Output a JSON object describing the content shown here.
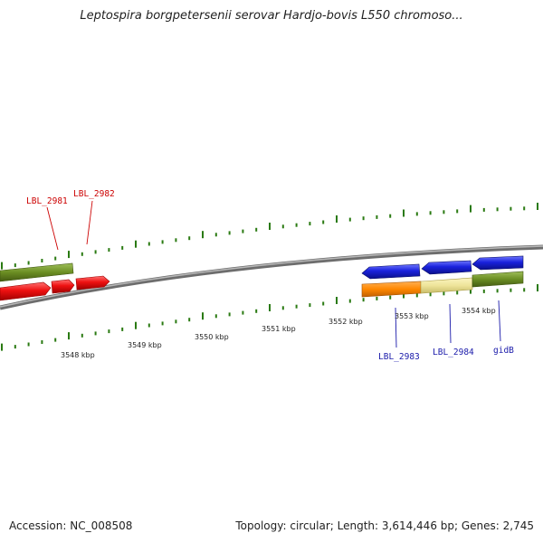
{
  "title": "Leptospira borgpetersenii serovar Hardjo-bovis L550 chromoso...",
  "footer": {
    "accession": "Accession: NC_008508",
    "summary": "Topology: circular; Length: 3,614,446 bp; Genes: 2,745"
  },
  "colors": {
    "backbone": "#8a8a8a",
    "tick": "#2a7a12",
    "red": "#ee1111",
    "blue": "#1a22dd",
    "olive": "#6b8e23",
    "orange": "#ff8800",
    "khaki": "#eee49a",
    "label_red": "#cc0000",
    "label_blue": "#1a1aaa"
  },
  "scale_labels": [
    "3548 kbp",
    "3549 kbp",
    "3550 kbp",
    "3551 kbp",
    "3552 kbp",
    "3553 kbp",
    "3554 kbp"
  ],
  "gene_labels": [
    {
      "text": "LBL_2981",
      "color": "red"
    },
    {
      "text": "LBL_2982",
      "color": "red"
    },
    {
      "text": "LBL_2983",
      "color": "blue"
    },
    {
      "text": "LBL_2984",
      "color": "blue"
    },
    {
      "text": "gidB",
      "color": "blue"
    }
  ]
}
